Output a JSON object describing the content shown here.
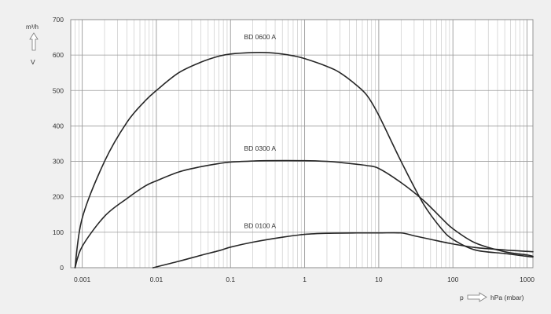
{
  "chart_data": {
    "type": "line",
    "x_scale": "log",
    "xlim": [
      0.0007,
      1200
    ],
    "ylim": [
      0,
      700
    ],
    "x_tick_values": [
      0.001,
      0.01,
      0.1,
      1,
      10,
      100,
      1000
    ],
    "x_tick_labels": [
      "0.001",
      "0.01",
      "0.1",
      "1",
      "10",
      "100",
      "1000"
    ],
    "y_ticks": [
      0,
      100,
      200,
      300,
      400,
      500,
      600,
      700
    ],
    "y_unit_label": "m³/h",
    "y_arrow_symbol": "V",
    "x_axis_symbol": "p",
    "x_unit_label": "hPa (mbar)",
    "grid": true,
    "series": [
      {
        "name": "BD 0600 A",
        "label_x": 0.25,
        "label_y": 645,
        "points": [
          [
            0.0008,
            0
          ],
          [
            0.001,
            140
          ],
          [
            0.002,
            300
          ],
          [
            0.004,
            410
          ],
          [
            0.007,
            470
          ],
          [
            0.01,
            500
          ],
          [
            0.02,
            550
          ],
          [
            0.04,
            580
          ],
          [
            0.07,
            597
          ],
          [
            0.1,
            603
          ],
          [
            0.2,
            607
          ],
          [
            0.3,
            607
          ],
          [
            0.5,
            603
          ],
          [
            0.7,
            598
          ],
          [
            1,
            590
          ],
          [
            2,
            568
          ],
          [
            3,
            550
          ],
          [
            5,
            515
          ],
          [
            7,
            485
          ],
          [
            10,
            430
          ],
          [
            20,
            300
          ],
          [
            40,
            180
          ],
          [
            70,
            110
          ],
          [
            100,
            80
          ],
          [
            200,
            50
          ],
          [
            500,
            40
          ],
          [
            1000,
            32
          ],
          [
            1200,
            30
          ]
        ]
      },
      {
        "name": "BD 0300 A",
        "label_x": 0.25,
        "label_y": 330,
        "points": [
          [
            0.0008,
            0
          ],
          [
            0.001,
            60
          ],
          [
            0.002,
            145
          ],
          [
            0.004,
            195
          ],
          [
            0.007,
            230
          ],
          [
            0.01,
            245
          ],
          [
            0.02,
            270
          ],
          [
            0.04,
            285
          ],
          [
            0.07,
            294
          ],
          [
            0.1,
            298
          ],
          [
            0.2,
            301
          ],
          [
            0.3,
            302
          ],
          [
            1,
            302
          ],
          [
            2,
            300
          ],
          [
            3,
            297
          ],
          [
            5,
            292
          ],
          [
            7,
            288
          ],
          [
            10,
            280
          ],
          [
            20,
            240
          ],
          [
            40,
            190
          ],
          [
            70,
            140
          ],
          [
            100,
            110
          ],
          [
            200,
            70
          ],
          [
            500,
            45
          ],
          [
            1000,
            36
          ],
          [
            1200,
            32
          ]
        ]
      },
      {
        "name": "BD 0100 A",
        "label_x": 0.25,
        "label_y": 112,
        "points": [
          [
            0.009,
            0
          ],
          [
            0.02,
            18
          ],
          [
            0.04,
            35
          ],
          [
            0.07,
            48
          ],
          [
            0.1,
            58
          ],
          [
            0.2,
            72
          ],
          [
            0.5,
            86
          ],
          [
            1,
            94
          ],
          [
            2,
            97
          ],
          [
            5,
            98
          ],
          [
            10,
            98
          ],
          [
            20,
            98
          ],
          [
            30,
            90
          ],
          [
            50,
            80
          ],
          [
            100,
            67
          ],
          [
            200,
            57
          ],
          [
            500,
            50
          ],
          [
            1000,
            46
          ],
          [
            1200,
            45
          ]
        ]
      }
    ]
  }
}
